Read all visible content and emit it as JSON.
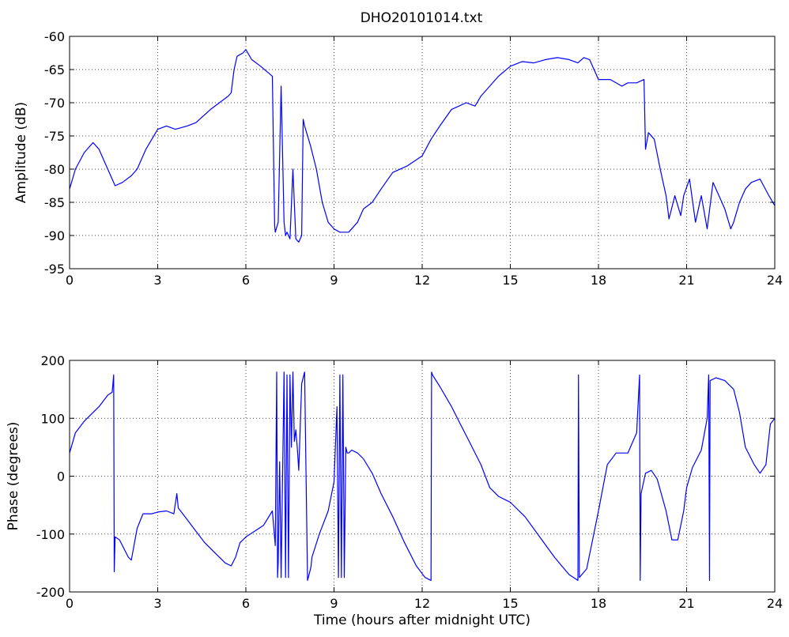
{
  "figure": {
    "title": "DHO20101014.txt",
    "line_color": "#0000ff",
    "background": "#ffffff",
    "grid_style": "dotted"
  },
  "chart_data": [
    {
      "type": "line",
      "title": "DHO20101014.txt",
      "xlabel": "",
      "ylabel": "Amplitude (dB)",
      "xlim": [
        0,
        24
      ],
      "ylim": [
        -95,
        -60
      ],
      "xticks": [
        0,
        3,
        6,
        9,
        12,
        15,
        18,
        21,
        24
      ],
      "yticks": [
        -95,
        -90,
        -85,
        -80,
        -75,
        -70,
        -65,
        -60
      ],
      "grid": true,
      "series": [
        {
          "x": [
            0,
            0.2,
            0.5,
            0.8,
            1.0,
            1.2,
            1.4,
            1.55,
            1.8,
            2.1,
            2.3,
            2.6,
            3.0,
            3.3,
            3.6,
            4.0,
            4.3,
            4.8,
            5.1,
            5.4,
            5.5,
            5.6,
            5.7,
            5.9,
            6.0,
            6.2,
            6.5,
            6.9,
            6.98,
            7.0,
            7.1,
            7.2,
            7.3,
            7.35,
            7.4,
            7.5,
            7.6,
            7.7,
            7.8,
            7.9,
            7.95,
            8.0,
            8.2,
            8.4,
            8.6,
            8.8,
            9.0,
            9.2,
            9.5,
            9.8,
            10.0,
            10.3,
            10.6,
            11.0,
            11.5,
            12.0,
            12.3,
            12.6,
            13.0,
            13.5,
            13.8,
            14.0,
            14.3,
            14.6,
            15.0,
            15.4,
            15.8,
            16.2,
            16.6,
            17.0,
            17.3,
            17.5,
            17.7,
            18.0,
            18.4,
            18.8,
            19.0,
            19.3,
            19.55,
            19.6,
            19.7,
            19.9,
            20.1,
            20.3,
            20.4,
            20.6,
            20.8,
            20.9,
            21.1,
            21.3,
            21.5,
            21.7,
            21.9,
            22.1,
            22.3,
            22.5,
            22.6,
            22.8,
            23.0,
            23.2,
            23.5,
            23.8,
            24.0
          ],
          "y": [
            -83,
            -80,
            -77.5,
            -76,
            -77,
            -79,
            -81,
            -82.5,
            -82,
            -81,
            -80,
            -77,
            -74,
            -73.5,
            -74,
            -73.5,
            -73,
            -71,
            -70,
            -69,
            -68.5,
            -65,
            -63,
            -62.5,
            -62,
            -63.5,
            -64.5,
            -66,
            -88.5,
            -89.5,
            -88,
            -67.5,
            -88,
            -90,
            -89.5,
            -90.5,
            -80,
            -90.5,
            -91,
            -90,
            -72.5,
            -73.5,
            -76.5,
            -80,
            -85,
            -88,
            -89,
            -89.5,
            -89.5,
            -88,
            -86,
            -85,
            -83,
            -80.5,
            -79.5,
            -78,
            -75.5,
            -73.5,
            -71,
            -70,
            -70.5,
            -69,
            -67.5,
            -66,
            -64.5,
            -63.8,
            -64,
            -63.5,
            -63.2,
            -63.5,
            -64,
            -63.2,
            -63.5,
            -66.5,
            -66.5,
            -67.5,
            -67,
            -67,
            -66.5,
            -77,
            -74.5,
            -75.5,
            -80,
            -84,
            -87.5,
            -84,
            -87,
            -84,
            -81.5,
            -88,
            -84,
            -89,
            -82,
            -84,
            -86,
            -89,
            -88,
            -85,
            -83,
            -82,
            -81.5,
            -84,
            -85.5
          ]
        }
      ]
    },
    {
      "type": "line",
      "title": "",
      "xlabel": "Time (hours after midnight UTC)",
      "ylabel": "Phase (degrees)",
      "xlim": [
        0,
        24
      ],
      "ylim": [
        -200,
        200
      ],
      "xticks": [
        0,
        3,
        6,
        9,
        12,
        15,
        18,
        21,
        24
      ],
      "yticks": [
        -200,
        -100,
        0,
        100,
        200
      ],
      "grid": true,
      "series": [
        {
          "x": [
            0,
            0.2,
            0.5,
            0.8,
            1.0,
            1.3,
            1.45,
            1.5,
            1.52,
            1.55,
            1.7,
            2.0,
            2.1,
            2.3,
            2.5,
            2.8,
            3.0,
            3.3,
            3.55,
            3.65,
            3.7,
            4.0,
            4.3,
            4.6,
            5.0,
            5.3,
            5.5,
            5.65,
            5.8,
            6.0,
            6.3,
            6.6,
            6.9,
            7.0,
            7.05,
            7.08,
            7.1,
            7.15,
            7.2,
            7.3,
            7.35,
            7.4,
            7.45,
            7.5,
            7.55,
            7.6,
            7.65,
            7.7,
            7.75,
            7.8,
            7.9,
            8.0,
            8.1,
            8.2,
            8.22,
            8.25,
            8.5,
            8.8,
            9.0,
            9.1,
            9.15,
            9.2,
            9.25,
            9.3,
            9.35,
            9.4,
            9.45,
            9.5,
            9.6,
            9.8,
            10.0,
            10.3,
            10.6,
            11.0,
            11.4,
            11.8,
            12.1,
            12.3,
            12.32,
            12.35,
            12.6,
            13.0,
            13.3,
            13.6,
            14.0,
            14.3,
            14.6,
            15.0,
            15.5,
            16.0,
            16.5,
            17.0,
            17.3,
            17.32,
            17.35,
            17.6,
            18.0,
            18.3,
            18.6,
            19.0,
            19.3,
            19.4,
            19.42,
            19.45,
            19.6,
            19.8,
            20.0,
            20.3,
            20.5,
            20.7,
            20.8,
            20.9,
            21.0,
            21.2,
            21.5,
            21.7,
            21.75,
            21.78,
            21.8,
            22.0,
            22.3,
            22.6,
            22.8,
            23.0,
            23.3,
            23.5,
            23.7,
            23.85,
            24.0
          ],
          "y": [
            40,
            75,
            95,
            110,
            120,
            140,
            145,
            175,
            -165,
            -105,
            -110,
            -140,
            -145,
            -90,
            -65,
            -65,
            -62,
            -60,
            -65,
            -30,
            -55,
            -75,
            -95,
            -115,
            -135,
            -150,
            -155,
            -140,
            -115,
            -105,
            -95,
            -85,
            -60,
            -120,
            180,
            -175,
            -150,
            25,
            -175,
            180,
            -175,
            175,
            -175,
            175,
            50,
            180,
            60,
            80,
            50,
            10,
            160,
            180,
            -180,
            -160,
            -155,
            -140,
            -100,
            -60,
            -10,
            120,
            -175,
            175,
            -175,
            175,
            -175,
            50,
            40,
            40,
            45,
            40,
            30,
            5,
            -30,
            -70,
            -115,
            -155,
            -175,
            -180,
            180,
            175,
            155,
            120,
            90,
            60,
            20,
            -20,
            -35,
            -45,
            -70,
            -105,
            -140,
            -170,
            -180,
            175,
            -175,
            -160,
            -60,
            20,
            40,
            40,
            75,
            175,
            -180,
            -30,
            5,
            10,
            -5,
            -60,
            -110,
            -110,
            -85,
            -60,
            -20,
            15,
            45,
            100,
            175,
            -180,
            165,
            170,
            165,
            150,
            110,
            50,
            20,
            5,
            20,
            90,
            100
          ]
        }
      ]
    }
  ]
}
